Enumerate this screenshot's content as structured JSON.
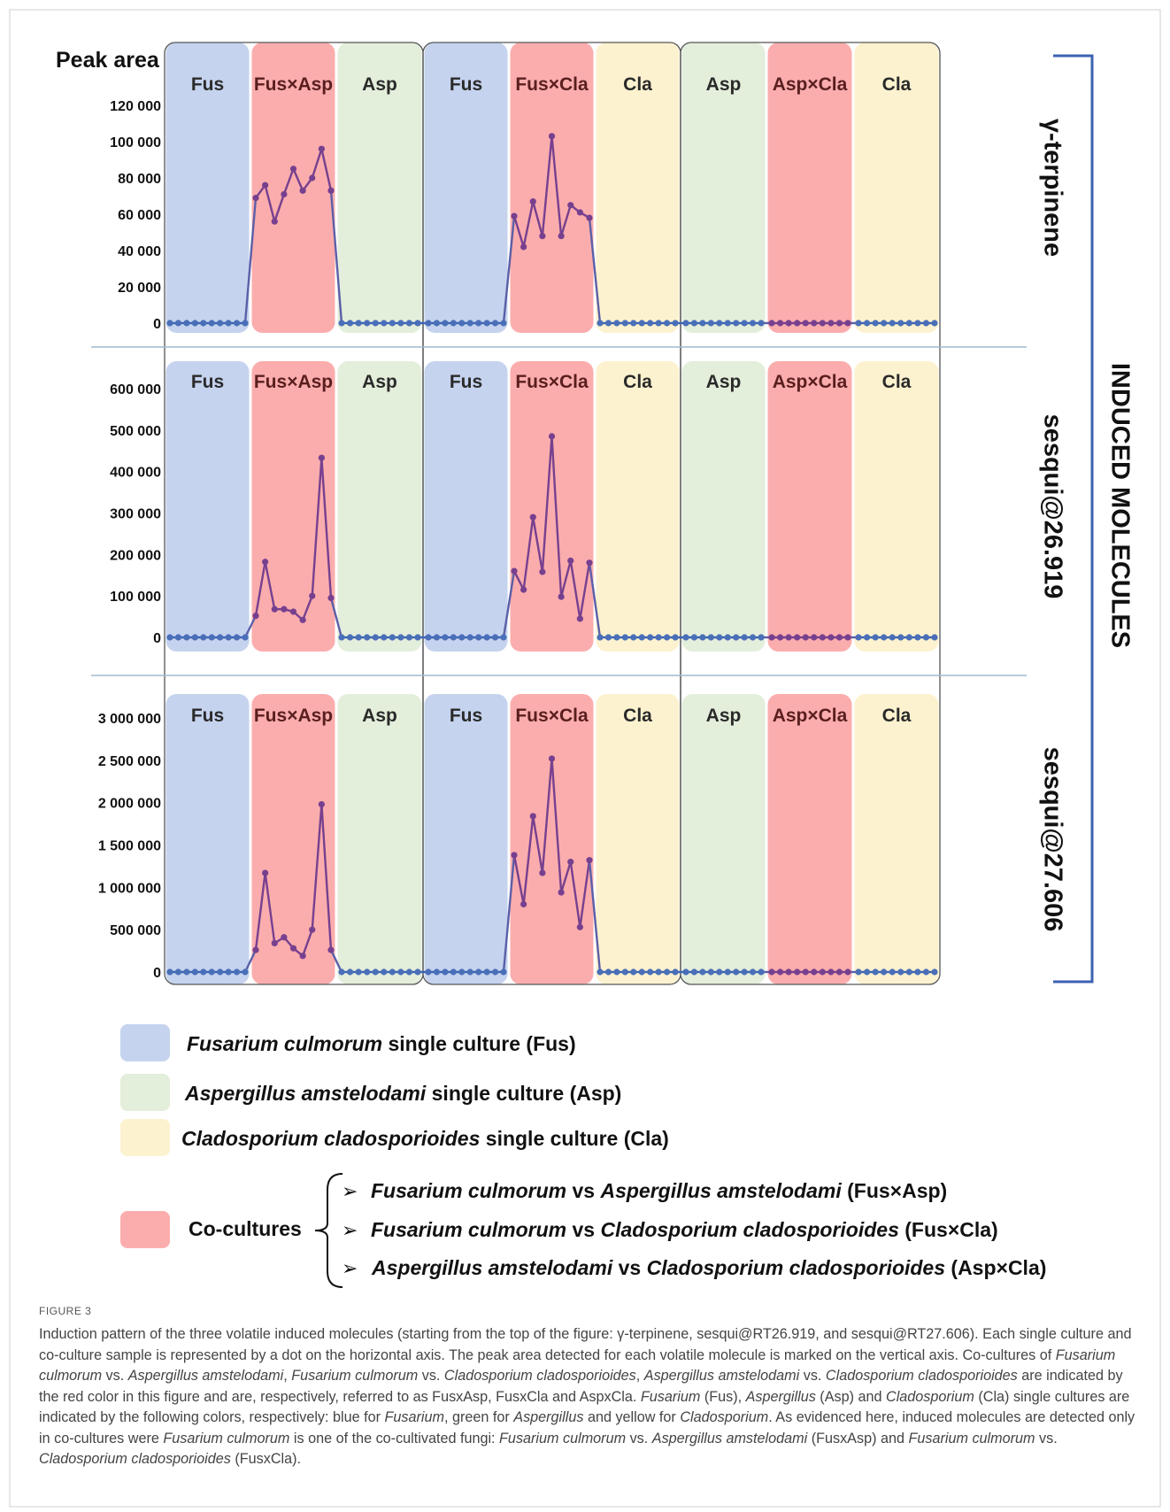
{
  "y_axis_title": "Peak area",
  "group_labels": [
    "Fus",
    "Fus×Asp",
    "Asp",
    "Fus",
    "Fus×Cla",
    "Cla",
    "Asp",
    "Asp×Cla",
    "Cla"
  ],
  "bracket_label": "INDUCED  MOLECULES",
  "colors": {
    "fus": "#c5d3ee",
    "asp": "#e3eedb",
    "cla": "#fdf2cf",
    "co": "#fbadad",
    "line_single": "#3a63b6",
    "line_co": "#77408f",
    "bracket": "#3c62b0"
  },
  "chart_data": [
    {
      "type": "line",
      "title": "γ-terpinene",
      "ylabel": "Peak area",
      "ylim": [
        0,
        120000
      ],
      "y_ticks": [
        {
          "value": 0,
          "label": "0"
        },
        {
          "value": 20000,
          "label": "20 000"
        },
        {
          "value": 40000,
          "label": "40 000"
        },
        {
          "value": 60000,
          "label": "60 000"
        },
        {
          "value": 80000,
          "label": "80 000"
        },
        {
          "value": 100000,
          "label": "100 000"
        },
        {
          "value": 120000,
          "label": "120 000"
        }
      ],
      "series": [
        {
          "values": [
            0,
            0,
            0,
            0,
            0,
            0,
            0,
            0,
            0,
            0
          ]
        },
        {
          "values": [
            69000,
            76000,
            56000,
            71000,
            85000,
            73000,
            80000,
            96000,
            73000
          ]
        },
        {
          "values": [
            0,
            0,
            0,
            0,
            0,
            0,
            0,
            0,
            0,
            0
          ]
        },
        {
          "values": [
            0,
            0,
            0,
            0,
            0,
            0,
            0,
            0,
            0,
            0
          ]
        },
        {
          "values": [
            59000,
            42000,
            67000,
            48000,
            103000,
            48000,
            65000,
            61000,
            58000
          ]
        },
        {
          "values": [
            0,
            0,
            0,
            0,
            0,
            0,
            0,
            0,
            0,
            0
          ]
        },
        {
          "values": [
            0,
            0,
            0,
            0,
            0,
            0,
            0,
            0,
            0,
            0
          ]
        },
        {
          "values": [
            0,
            0,
            0,
            0,
            0,
            0,
            0,
            0,
            0,
            0
          ]
        },
        {
          "values": [
            0,
            0,
            0,
            0,
            0,
            0,
            0,
            0,
            0,
            0
          ]
        }
      ]
    },
    {
      "type": "line",
      "title": "sesqui@26.919",
      "ylim": [
        0,
        600000
      ],
      "y_ticks": [
        {
          "value": 0,
          "label": "0"
        },
        {
          "value": 100000,
          "label": "100 000"
        },
        {
          "value": 200000,
          "label": "200 000"
        },
        {
          "value": 300000,
          "label": "300 000"
        },
        {
          "value": 400000,
          "label": "400 000"
        },
        {
          "value": 500000,
          "label": "500 000"
        },
        {
          "value": 600000,
          "label": "600 000"
        }
      ],
      "series": [
        {
          "values": [
            0,
            0,
            0,
            0,
            0,
            0,
            0,
            0,
            0,
            0
          ]
        },
        {
          "values": [
            52000,
            182000,
            68000,
            68000,
            62000,
            42000,
            100000,
            433000,
            95000
          ]
        },
        {
          "values": [
            0,
            0,
            0,
            0,
            0,
            0,
            0,
            0,
            0,
            0
          ]
        },
        {
          "values": [
            0,
            0,
            0,
            0,
            0,
            0,
            0,
            0,
            0,
            0
          ]
        },
        {
          "values": [
            160000,
            115000,
            290000,
            158000,
            485000,
            98000,
            185000,
            45000,
            180000
          ]
        },
        {
          "values": [
            0,
            0,
            0,
            0,
            0,
            0,
            0,
            0,
            0,
            0
          ]
        },
        {
          "values": [
            0,
            0,
            0,
            0,
            0,
            0,
            0,
            0,
            0,
            0
          ]
        },
        {
          "values": [
            0,
            0,
            0,
            0,
            0,
            0,
            0,
            0,
            0,
            0
          ]
        },
        {
          "values": [
            0,
            0,
            0,
            0,
            0,
            0,
            0,
            0,
            0,
            0
          ]
        }
      ]
    },
    {
      "type": "line",
      "title": "sesqui@27.606",
      "ylim": [
        0,
        3000000
      ],
      "y_ticks": [
        {
          "value": 0,
          "label": "0"
        },
        {
          "value": 500000,
          "label": "500 000"
        },
        {
          "value": 1000000,
          "label": "1 000 000"
        },
        {
          "value": 1500000,
          "label": "1 500 000"
        },
        {
          "value": 2000000,
          "label": "2 000 000"
        },
        {
          "value": 2500000,
          "label": "2 500 000"
        },
        {
          "value": 3000000,
          "label": "3 000 000"
        }
      ],
      "series": [
        {
          "values": [
            0,
            0,
            0,
            0,
            0,
            0,
            0,
            0,
            0,
            0
          ]
        },
        {
          "values": [
            260000,
            1170000,
            340000,
            410000,
            280000,
            190000,
            500000,
            1980000,
            260000
          ]
        },
        {
          "values": [
            0,
            0,
            0,
            0,
            0,
            0,
            0,
            0,
            0,
            0
          ]
        },
        {
          "values": [
            0,
            0,
            0,
            0,
            0,
            0,
            0,
            0,
            0,
            0
          ]
        },
        {
          "values": [
            1380000,
            800000,
            1840000,
            1170000,
            2520000,
            940000,
            1300000,
            530000,
            1320000
          ]
        },
        {
          "values": [
            0,
            0,
            0,
            0,
            0,
            0,
            0,
            0,
            0,
            0
          ]
        },
        {
          "values": [
            0,
            0,
            0,
            0,
            0,
            0,
            0,
            0,
            0,
            0
          ]
        },
        {
          "values": [
            0,
            0,
            0,
            0,
            0,
            0,
            0,
            0,
            0,
            0
          ]
        },
        {
          "values": [
            0,
            0,
            0,
            0,
            0,
            0,
            0,
            0,
            0,
            0
          ]
        }
      ]
    }
  ],
  "legend": {
    "single": [
      {
        "species": "Fusarium culmorum",
        "suffix": " single culture (Fus)"
      },
      {
        "species": "Aspergillus amstelodami",
        "suffix": " single culture (Asp)"
      },
      {
        "species": "Cladosporium cladosporioides",
        "suffix": " single culture (Cla)"
      }
    ],
    "co_label": "Co-cultures",
    "co_items": [
      {
        "a": "Fusarium culmorum",
        "vs": " vs ",
        "b": "Aspergillus amstelodami",
        "code": " (Fus×Asp)"
      },
      {
        "a": "Fusarium culmorum",
        "vs": " vs ",
        "b": "Cladosporium cladosporioides",
        "code": " (Fus×Cla)"
      },
      {
        "a": "Aspergillus amstelodami",
        "vs": " vs ",
        "b": "Cladosporium cladosporioides",
        "code": " (Asp×Cla)"
      }
    ]
  },
  "caption": {
    "label": "FIGURE 3",
    "parts": [
      {
        "t": "Induction pattern of the three volatile induced molecules (starting from the top of the figure: γ-terpinene, sesqui@RT26.919, and sesqui@RT27.606). Each single culture and co-culture sample is represented by a dot on the horizontal axis. The peak area detected for each volatile molecule is marked on the vertical axis. Co-cultures of "
      },
      {
        "t": "Fusarium culmorum",
        "i": true
      },
      {
        "t": " vs. "
      },
      {
        "t": "Aspergillus amstelodami",
        "i": true
      },
      {
        "t": ", "
      },
      {
        "t": "Fusarium culmorum",
        "i": true
      },
      {
        "t": " vs. "
      },
      {
        "t": "Cladosporium cladosporioides",
        "i": true
      },
      {
        "t": ", "
      },
      {
        "t": "Aspergillus amstelodami",
        "i": true
      },
      {
        "t": " vs. "
      },
      {
        "t": "Cladosporium cladosporioides",
        "i": true
      },
      {
        "t": " are indicated by the red color in this figure and are, respectively, referred to as FusxAsp, FusxCla and AspxCla. "
      },
      {
        "t": "Fusarium",
        "i": true
      },
      {
        "t": " (Fus), "
      },
      {
        "t": "Aspergillus",
        "i": true
      },
      {
        "t": " (Asp) and "
      },
      {
        "t": "Cladosporium",
        "i": true
      },
      {
        "t": " (Cla) single cultures are indicated by the following colors, respectively: blue for "
      },
      {
        "t": "Fusarium",
        "i": true
      },
      {
        "t": ", green for "
      },
      {
        "t": "Aspergillus",
        "i": true
      },
      {
        "t": " and yellow for "
      },
      {
        "t": "Cladosporium",
        "i": true
      },
      {
        "t": ". As evidenced here, induced molecules are detected only in co-cultures were "
      },
      {
        "t": "Fusarium culmorum",
        "i": true
      },
      {
        "t": " is one of the co-cultivated fungi: "
      },
      {
        "t": "Fusarium culmorum",
        "i": true
      },
      {
        "t": " vs. "
      },
      {
        "t": "Aspergillus amstelodami",
        "i": true
      },
      {
        "t": " (FusxAsp) and "
      },
      {
        "t": "Fusarium culmorum",
        "i": true
      },
      {
        "t": " vs. "
      },
      {
        "t": "Cladosporium cladosporioides",
        "i": true
      },
      {
        "t": " (FusxCla)."
      }
    ]
  }
}
